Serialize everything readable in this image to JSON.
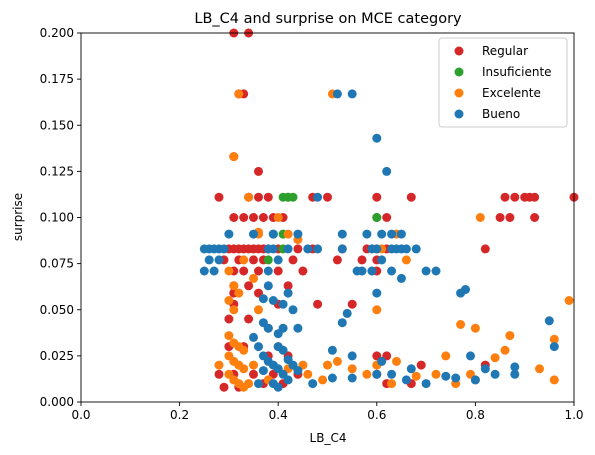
{
  "chart_data": {
    "type": "scatter",
    "title": "LB_C4 and surprise on MCE category",
    "xlabel": "LB_C4",
    "ylabel": "surprise",
    "xlim": [
      0.0,
      1.0
    ],
    "ylim": [
      0.0,
      0.2
    ],
    "x_ticks": [
      "0.0",
      "0.2",
      "0.4",
      "0.6",
      "0.8",
      "1.0"
    ],
    "y_ticks": [
      "0.000",
      "0.025",
      "0.050",
      "0.075",
      "0.100",
      "0.125",
      "0.150",
      "0.175",
      "0.200"
    ],
    "grid": false,
    "legend_position": "top-right",
    "series": [
      {
        "name": "Regular",
        "color": "#d62728",
        "points": [
          [
            0.31,
            0.2
          ],
          [
            0.34,
            0.2
          ],
          [
            0.32,
            0.167
          ],
          [
            0.33,
            0.167
          ],
          [
            0.31,
            0.133
          ],
          [
            0.36,
            0.125
          ],
          [
            0.28,
            0.111
          ],
          [
            0.34,
            0.111
          ],
          [
            0.36,
            0.111
          ],
          [
            0.38,
            0.111
          ],
          [
            0.42,
            0.111
          ],
          [
            0.47,
            0.111
          ],
          [
            0.5,
            0.111
          ],
          [
            0.6,
            0.111
          ],
          [
            0.67,
            0.111
          ],
          [
            0.86,
            0.111
          ],
          [
            0.88,
            0.111
          ],
          [
            0.9,
            0.111
          ],
          [
            0.91,
            0.111
          ],
          [
            0.92,
            0.111
          ],
          [
            1.0,
            0.111
          ],
          [
            0.31,
            0.1
          ],
          [
            0.33,
            0.1
          ],
          [
            0.35,
            0.1
          ],
          [
            0.37,
            0.1
          ],
          [
            0.39,
            0.1
          ],
          [
            0.41,
            0.1
          ],
          [
            0.6,
            0.1
          ],
          [
            0.62,
            0.1
          ],
          [
            0.85,
            0.1
          ],
          [
            0.87,
            0.1
          ],
          [
            0.92,
            0.1
          ],
          [
            0.3,
            0.083
          ],
          [
            0.31,
            0.083
          ],
          [
            0.32,
            0.083
          ],
          [
            0.33,
            0.083
          ],
          [
            0.34,
            0.083
          ],
          [
            0.35,
            0.083
          ],
          [
            0.36,
            0.083
          ],
          [
            0.37,
            0.083
          ],
          [
            0.38,
            0.083
          ],
          [
            0.4,
            0.083
          ],
          [
            0.44,
            0.083
          ],
          [
            0.47,
            0.083
          ],
          [
            0.53,
            0.083
          ],
          [
            0.58,
            0.083
          ],
          [
            0.6,
            0.083
          ],
          [
            0.62,
            0.083
          ],
          [
            0.82,
            0.083
          ],
          [
            0.29,
            0.077
          ],
          [
            0.32,
            0.077
          ],
          [
            0.35,
            0.077
          ],
          [
            0.37,
            0.077
          ],
          [
            0.43,
            0.077
          ],
          [
            0.52,
            0.077
          ],
          [
            0.57,
            0.077
          ],
          [
            0.6,
            0.077
          ],
          [
            0.31,
            0.071
          ],
          [
            0.33,
            0.071
          ],
          [
            0.36,
            0.071
          ],
          [
            0.4,
            0.071
          ],
          [
            0.45,
            0.071
          ],
          [
            0.6,
            0.071
          ],
          [
            0.31,
            0.063
          ],
          [
            0.34,
            0.063
          ],
          [
            0.42,
            0.063
          ],
          [
            0.31,
            0.059
          ],
          [
            0.36,
            0.059
          ],
          [
            0.31,
            0.053
          ],
          [
            0.4,
            0.053
          ],
          [
            0.48,
            0.053
          ],
          [
            0.55,
            0.053
          ],
          [
            0.3,
            0.045
          ],
          [
            0.34,
            0.045
          ],
          [
            0.38,
            0.04
          ],
          [
            0.3,
            0.03
          ],
          [
            0.33,
            0.03
          ],
          [
            0.38,
            0.025
          ],
          [
            0.42,
            0.025
          ],
          [
            0.6,
            0.025
          ],
          [
            0.62,
            0.025
          ],
          [
            0.28,
            0.015
          ],
          [
            0.31,
            0.015
          ],
          [
            0.35,
            0.015
          ],
          [
            0.39,
            0.015
          ],
          [
            0.44,
            0.015
          ],
          [
            0.6,
            0.015
          ],
          [
            0.69,
            0.02
          ],
          [
            0.82,
            0.02
          ],
          [
            0.29,
            0.008
          ],
          [
            0.32,
            0.008
          ],
          [
            0.37,
            0.01
          ],
          [
            0.41,
            0.01
          ],
          [
            0.62,
            0.01
          ],
          [
            0.67,
            0.01
          ]
        ]
      },
      {
        "name": "Insuficiente",
        "color": "#2ca02c",
        "points": [
          [
            0.41,
            0.111
          ],
          [
            0.42,
            0.111
          ],
          [
            0.43,
            0.111
          ],
          [
            0.39,
            0.091
          ],
          [
            0.41,
            0.091
          ],
          [
            0.6,
            0.1
          ],
          [
            0.38,
            0.077
          ],
          [
            0.41,
            0.083
          ]
        ]
      },
      {
        "name": "Excelente",
        "color": "#ff7f0e",
        "points": [
          [
            0.51,
            0.167
          ],
          [
            0.32,
            0.167
          ],
          [
            0.31,
            0.133
          ],
          [
            0.34,
            0.111
          ],
          [
            0.4,
            0.1
          ],
          [
            0.81,
            0.1
          ],
          [
            0.36,
            0.091
          ],
          [
            0.42,
            0.091
          ],
          [
            0.64,
            0.091
          ],
          [
            0.61,
            0.083
          ],
          [
            0.66,
            0.077
          ],
          [
            0.33,
            0.077
          ],
          [
            0.3,
            0.071
          ],
          [
            0.35,
            0.067
          ],
          [
            0.31,
            0.063
          ],
          [
            0.32,
            0.059
          ],
          [
            0.36,
            0.05
          ],
          [
            0.3,
            0.055
          ],
          [
            0.31,
            0.05
          ],
          [
            0.6,
            0.05
          ],
          [
            0.77,
            0.042
          ],
          [
            0.8,
            0.04
          ],
          [
            0.99,
            0.055
          ],
          [
            0.87,
            0.036
          ],
          [
            0.96,
            0.034
          ],
          [
            0.3,
            0.036
          ],
          [
            0.31,
            0.032
          ],
          [
            0.32,
            0.03
          ],
          [
            0.33,
            0.028
          ],
          [
            0.3,
            0.025
          ],
          [
            0.31,
            0.022
          ],
          [
            0.32,
            0.02
          ],
          [
            0.33,
            0.018
          ],
          [
            0.3,
            0.015
          ],
          [
            0.31,
            0.012
          ],
          [
            0.32,
            0.01
          ],
          [
            0.33,
            0.008
          ],
          [
            0.34,
            0.01
          ],
          [
            0.28,
            0.02
          ],
          [
            0.35,
            0.02
          ],
          [
            0.4,
            0.03
          ],
          [
            0.45,
            0.02
          ],
          [
            0.46,
            0.015
          ],
          [
            0.5,
            0.02
          ],
          [
            0.52,
            0.022
          ],
          [
            0.58,
            0.015
          ],
          [
            0.6,
            0.02
          ],
          [
            0.63,
            0.01
          ],
          [
            0.72,
            0.015
          ],
          [
            0.74,
            0.025
          ],
          [
            0.79,
            0.015
          ],
          [
            0.84,
            0.024
          ],
          [
            0.86,
            0.028
          ],
          [
            0.93,
            0.018
          ],
          [
            0.96,
            0.012
          ],
          [
            0.38,
            0.012
          ],
          [
            0.42,
            0.018
          ],
          [
            0.49,
            0.012
          ],
          [
            0.55,
            0.018
          ],
          [
            0.64,
            0.022
          ],
          [
            0.68,
            0.014
          ],
          [
            0.76,
            0.01
          ],
          [
            0.8,
            0.012
          ],
          [
            0.36,
            0.092
          ],
          [
            0.44,
            0.088
          ]
        ]
      },
      {
        "name": "Bueno",
        "color": "#1f77b4",
        "points": [
          [
            0.52,
            0.167
          ],
          [
            0.55,
            0.167
          ],
          [
            0.6,
            0.143
          ],
          [
            0.62,
            0.125
          ],
          [
            0.48,
            0.111
          ],
          [
            0.3,
            0.091
          ],
          [
            0.35,
            0.091
          ],
          [
            0.39,
            0.091
          ],
          [
            0.44,
            0.091
          ],
          [
            0.53,
            0.091
          ],
          [
            0.58,
            0.091
          ],
          [
            0.61,
            0.091
          ],
          [
            0.63,
            0.091
          ],
          [
            0.65,
            0.091
          ],
          [
            0.25,
            0.083
          ],
          [
            0.26,
            0.083
          ],
          [
            0.27,
            0.083
          ],
          [
            0.28,
            0.083
          ],
          [
            0.29,
            0.083
          ],
          [
            0.38,
            0.083
          ],
          [
            0.39,
            0.083
          ],
          [
            0.42,
            0.083
          ],
          [
            0.46,
            0.083
          ],
          [
            0.48,
            0.083
          ],
          [
            0.53,
            0.083
          ],
          [
            0.59,
            0.083
          ],
          [
            0.6,
            0.083
          ],
          [
            0.63,
            0.083
          ],
          [
            0.64,
            0.083
          ],
          [
            0.65,
            0.083
          ],
          [
            0.66,
            0.083
          ],
          [
            0.68,
            0.083
          ],
          [
            0.26,
            0.077
          ],
          [
            0.28,
            0.077
          ],
          [
            0.4,
            0.077
          ],
          [
            0.61,
            0.077
          ],
          [
            0.25,
            0.071
          ],
          [
            0.27,
            0.071
          ],
          [
            0.38,
            0.071
          ],
          [
            0.56,
            0.071
          ],
          [
            0.57,
            0.071
          ],
          [
            0.59,
            0.071
          ],
          [
            0.63,
            0.071
          ],
          [
            0.7,
            0.071
          ],
          [
            0.72,
            0.071
          ],
          [
            0.65,
            0.067
          ],
          [
            0.38,
            0.063
          ],
          [
            0.42,
            0.059
          ],
          [
            0.78,
            0.061
          ],
          [
            0.77,
            0.059
          ],
          [
            0.6,
            0.059
          ],
          [
            0.37,
            0.056
          ],
          [
            0.39,
            0.055
          ],
          [
            0.41,
            0.053
          ],
          [
            0.43,
            0.05
          ],
          [
            0.54,
            0.048
          ],
          [
            0.53,
            0.043
          ],
          [
            0.37,
            0.043
          ],
          [
            0.38,
            0.04
          ],
          [
            0.41,
            0.04
          ],
          [
            0.4,
            0.037
          ],
          [
            0.44,
            0.04
          ],
          [
            0.51,
            0.028
          ],
          [
            0.55,
            0.025
          ],
          [
            0.35,
            0.035
          ],
          [
            0.36,
            0.03
          ],
          [
            0.37,
            0.025
          ],
          [
            0.38,
            0.022
          ],
          [
            0.39,
            0.02
          ],
          [
            0.4,
            0.018
          ],
          [
            0.41,
            0.015
          ],
          [
            0.42,
            0.012
          ],
          [
            0.39,
            0.01
          ],
          [
            0.4,
            0.008
          ],
          [
            0.36,
            0.01
          ],
          [
            0.41,
            0.028
          ],
          [
            0.42,
            0.023
          ],
          [
            0.43,
            0.02
          ],
          [
            0.44,
            0.017
          ],
          [
            0.47,
            0.01
          ],
          [
            0.51,
            0.013
          ],
          [
            0.55,
            0.013
          ],
          [
            0.6,
            0.015
          ],
          [
            0.61,
            0.022
          ],
          [
            0.63,
            0.015
          ],
          [
            0.66,
            0.012
          ],
          [
            0.74,
            0.014
          ],
          [
            0.76,
            0.013
          ],
          [
            0.79,
            0.025
          ],
          [
            0.82,
            0.018
          ],
          [
            0.84,
            0.015
          ],
          [
            0.88,
            0.015
          ],
          [
            0.88,
            0.019
          ],
          [
            0.95,
            0.044
          ],
          [
            0.96,
            0.03
          ],
          [
            0.8,
            0.012
          ],
          [
            0.7,
            0.01
          ],
          [
            0.67,
            0.018
          ],
          [
            0.37,
            0.017
          ],
          [
            0.4,
            0.03
          ]
        ]
      }
    ]
  }
}
